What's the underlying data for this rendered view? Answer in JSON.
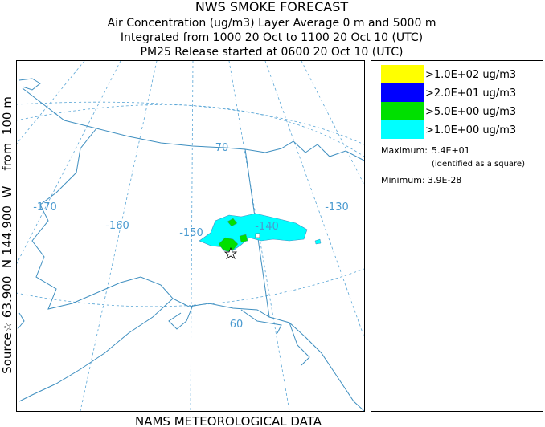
{
  "header": {
    "title": "NWS SMOKE FORECAST",
    "lines": [
      "Air Concentration (ug/m3) Layer Average    0 m and  5000 m",
      "Integrated from 1000 20 Oct to 1100 20 Oct 10 (UTC)",
      "PM25 Release started at 0600 20 Oct 10 (UTC)"
    ]
  },
  "side_label": "Source☆ 63.900  N 144.900  W    from  100 m",
  "footer": "NAMS METEOROLOGICAL DATA",
  "map": {
    "longitude_labels": [
      "-170",
      "-160",
      "-150",
      "-140",
      "-130"
    ],
    "latitude_labels": [
      "70",
      "60"
    ]
  },
  "legend": {
    "entries": [
      {
        "label": ">1.0E+02 ug/m3",
        "color": "#ffff00"
      },
      {
        "label": ">2.0E+01 ug/m3",
        "color": "#0000ff"
      },
      {
        "label": ">5.0E+00 ug/m3",
        "color": "#00e000"
      },
      {
        "label": ">1.0E+00 ug/m3",
        "color": "#00ffff"
      }
    ],
    "maximum_label": "Maximum:",
    "maximum": "5.4E+01",
    "maximum_note": "(identified as a square)",
    "minimum_label": "Minimum:",
    "minimum": "3.9E-28"
  }
}
